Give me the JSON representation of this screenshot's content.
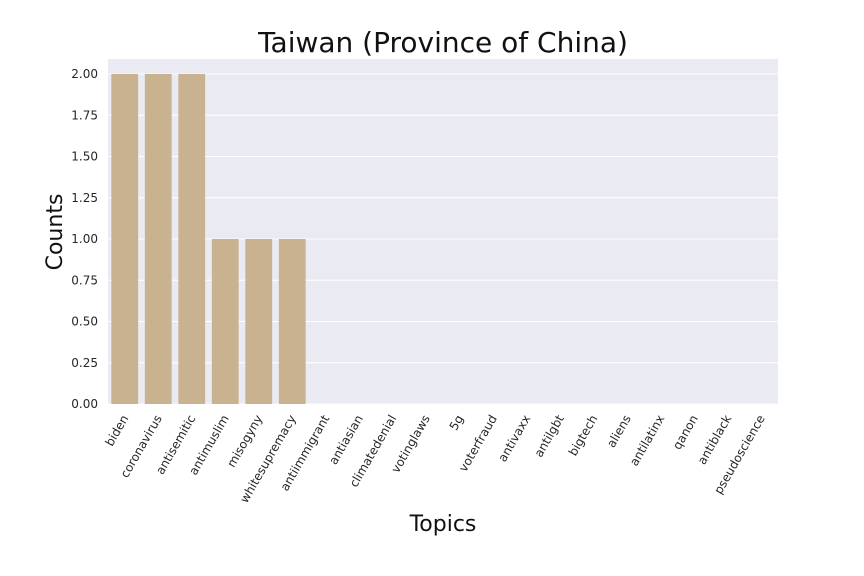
{
  "chart_data": {
    "type": "bar",
    "title": "Taiwan (Province of China)",
    "xlabel": "Topics",
    "ylabel": "Counts",
    "categories": [
      "biden",
      "coronavirus",
      "antisemitic",
      "antimuslim",
      "misogyny",
      "whitesupremacy",
      "antiimmigrant",
      "antiasian",
      "climatedenial",
      "votinglaws",
      "5g",
      "voterfraud",
      "antivaxx",
      "antilgbt",
      "bigtech",
      "aliens",
      "antilatinx",
      "qanon",
      "antiblack",
      "pseudoscience"
    ],
    "values": [
      2,
      2,
      2,
      1,
      1,
      1,
      0,
      0,
      0,
      0,
      0,
      0,
      0,
      0,
      0,
      0,
      0,
      0,
      0,
      0
    ],
    "yticks": [
      "0.00",
      "0.25",
      "0.50",
      "0.75",
      "1.00",
      "1.25",
      "1.50",
      "1.75",
      "2.00"
    ],
    "ylim": [
      0,
      2.0
    ],
    "grid": true,
    "colors": {
      "bar": "#c9b28f",
      "background": "#eaeaf2",
      "grid": "#ffffff"
    }
  }
}
